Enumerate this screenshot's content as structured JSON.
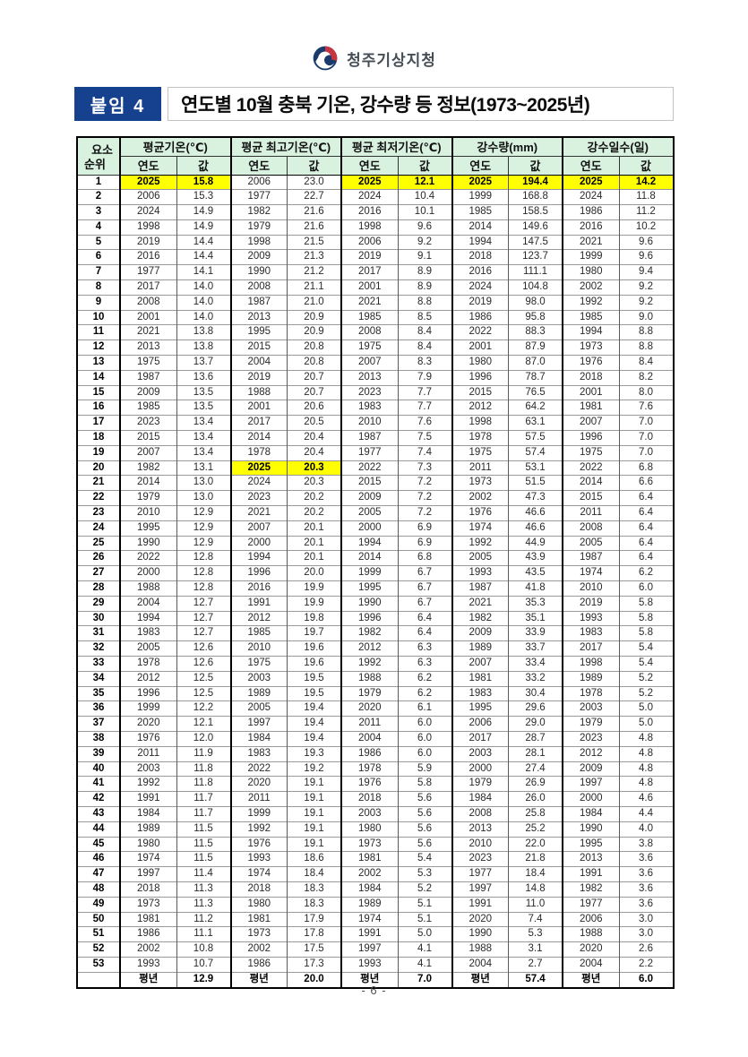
{
  "logo": {
    "agency_name": "청주기상지청"
  },
  "header": {
    "badge": "붙임 4",
    "title": "연도별 10월 충북 기온, 강수량 등 정보(1973~2025년)"
  },
  "table": {
    "corner_top": "요소",
    "corner_bottom": "순위",
    "groups": [
      {
        "label": "평균기온(℃)"
      },
      {
        "label": "평균 최고기온(℃)"
      },
      {
        "label": "평균 최저기온(℃)"
      },
      {
        "label": "강수량(mm)"
      },
      {
        "label": "강수일수(일)"
      }
    ],
    "sub_year": "연도",
    "sub_value": "값",
    "rows": [
      [
        "1",
        [
          "2025",
          "15.8",
          1
        ],
        [
          "2006",
          "23.0"
        ],
        [
          "2025",
          "12.1",
          1
        ],
        [
          "2025",
          "194.4",
          1
        ],
        [
          "2025",
          "14.2",
          1
        ]
      ],
      [
        "2",
        [
          "2006",
          "15.3"
        ],
        [
          "1977",
          "22.7"
        ],
        [
          "2024",
          "10.4"
        ],
        [
          "1999",
          "168.8"
        ],
        [
          "2024",
          "11.8"
        ]
      ],
      [
        "3",
        [
          "2024",
          "14.9"
        ],
        [
          "1982",
          "21.6"
        ],
        [
          "2016",
          "10.1"
        ],
        [
          "1985",
          "158.5"
        ],
        [
          "1986",
          "11.2"
        ]
      ],
      [
        "4",
        [
          "1998",
          "14.9"
        ],
        [
          "1979",
          "21.6"
        ],
        [
          "1998",
          "9.6"
        ],
        [
          "2014",
          "149.6"
        ],
        [
          "2016",
          "10.2"
        ]
      ],
      [
        "5",
        [
          "2019",
          "14.4"
        ],
        [
          "1998",
          "21.5"
        ],
        [
          "2006",
          "9.2"
        ],
        [
          "1994",
          "147.5"
        ],
        [
          "2021",
          "9.6"
        ]
      ],
      [
        "6",
        [
          "2016",
          "14.4"
        ],
        [
          "2009",
          "21.3"
        ],
        [
          "2019",
          "9.1"
        ],
        [
          "2018",
          "123.7"
        ],
        [
          "1999",
          "9.6"
        ]
      ],
      [
        "7",
        [
          "1977",
          "14.1"
        ],
        [
          "1990",
          "21.2"
        ],
        [
          "2017",
          "8.9"
        ],
        [
          "2016",
          "111.1"
        ],
        [
          "1980",
          "9.4"
        ]
      ],
      [
        "8",
        [
          "2017",
          "14.0"
        ],
        [
          "2008",
          "21.1"
        ],
        [
          "2001",
          "8.9"
        ],
        [
          "2024",
          "104.8"
        ],
        [
          "2002",
          "9.2"
        ]
      ],
      [
        "9",
        [
          "2008",
          "14.0"
        ],
        [
          "1987",
          "21.0"
        ],
        [
          "2021",
          "8.8"
        ],
        [
          "2019",
          "98.0"
        ],
        [
          "1992",
          "9.2"
        ]
      ],
      [
        "10",
        [
          "2001",
          "14.0"
        ],
        [
          "2013",
          "20.9"
        ],
        [
          "1985",
          "8.5"
        ],
        [
          "1986",
          "95.8"
        ],
        [
          "1985",
          "9.0"
        ]
      ],
      [
        "11",
        [
          "2021",
          "13.8"
        ],
        [
          "1995",
          "20.9"
        ],
        [
          "2008",
          "8.4"
        ],
        [
          "2022",
          "88.3"
        ],
        [
          "1994",
          "8.8"
        ]
      ],
      [
        "12",
        [
          "2013",
          "13.8"
        ],
        [
          "2015",
          "20.8"
        ],
        [
          "1975",
          "8.4"
        ],
        [
          "2001",
          "87.9"
        ],
        [
          "1973",
          "8.8"
        ]
      ],
      [
        "13",
        [
          "1975",
          "13.7"
        ],
        [
          "2004",
          "20.8"
        ],
        [
          "2007",
          "8.3"
        ],
        [
          "1980",
          "87.0"
        ],
        [
          "1976",
          "8.4"
        ]
      ],
      [
        "14",
        [
          "1987",
          "13.6"
        ],
        [
          "2019",
          "20.7"
        ],
        [
          "2013",
          "7.9"
        ],
        [
          "1996",
          "78.7"
        ],
        [
          "2018",
          "8.2"
        ]
      ],
      [
        "15",
        [
          "2009",
          "13.5"
        ],
        [
          "1988",
          "20.7"
        ],
        [
          "2023",
          "7.7"
        ],
        [
          "2015",
          "76.5"
        ],
        [
          "2001",
          "8.0"
        ]
      ],
      [
        "16",
        [
          "1985",
          "13.5"
        ],
        [
          "2001",
          "20.6"
        ],
        [
          "1983",
          "7.7"
        ],
        [
          "2012",
          "64.2"
        ],
        [
          "1981",
          "7.6"
        ]
      ],
      [
        "17",
        [
          "2023",
          "13.4"
        ],
        [
          "2017",
          "20.5"
        ],
        [
          "2010",
          "7.6"
        ],
        [
          "1998",
          "63.1"
        ],
        [
          "2007",
          "7.0"
        ]
      ],
      [
        "18",
        [
          "2015",
          "13.4"
        ],
        [
          "2014",
          "20.4"
        ],
        [
          "1987",
          "7.5"
        ],
        [
          "1978",
          "57.5"
        ],
        [
          "1996",
          "7.0"
        ]
      ],
      [
        "19",
        [
          "2007",
          "13.4"
        ],
        [
          "1978",
          "20.4"
        ],
        [
          "1977",
          "7.4"
        ],
        [
          "1975",
          "57.4"
        ],
        [
          "1975",
          "7.0"
        ]
      ],
      [
        "20",
        [
          "1982",
          "13.1"
        ],
        [
          "2025",
          "20.3",
          1
        ],
        [
          "2022",
          "7.3"
        ],
        [
          "2011",
          "53.1"
        ],
        [
          "2022",
          "6.8"
        ]
      ],
      [
        "21",
        [
          "2014",
          "13.0"
        ],
        [
          "2024",
          "20.3"
        ],
        [
          "2015",
          "7.2"
        ],
        [
          "1973",
          "51.5"
        ],
        [
          "2014",
          "6.6"
        ]
      ],
      [
        "22",
        [
          "1979",
          "13.0"
        ],
        [
          "2023",
          "20.2"
        ],
        [
          "2009",
          "7.2"
        ],
        [
          "2002",
          "47.3"
        ],
        [
          "2015",
          "6.4"
        ]
      ],
      [
        "23",
        [
          "2010",
          "12.9"
        ],
        [
          "2021",
          "20.2"
        ],
        [
          "2005",
          "7.2"
        ],
        [
          "1976",
          "46.6"
        ],
        [
          "2011",
          "6.4"
        ]
      ],
      [
        "24",
        [
          "1995",
          "12.9"
        ],
        [
          "2007",
          "20.1"
        ],
        [
          "2000",
          "6.9"
        ],
        [
          "1974",
          "46.6"
        ],
        [
          "2008",
          "6.4"
        ]
      ],
      [
        "25",
        [
          "1990",
          "12.9"
        ],
        [
          "2000",
          "20.1"
        ],
        [
          "1994",
          "6.9"
        ],
        [
          "1992",
          "44.9"
        ],
        [
          "2005",
          "6.4"
        ]
      ],
      [
        "26",
        [
          "2022",
          "12.8"
        ],
        [
          "1994",
          "20.1"
        ],
        [
          "2014",
          "6.8"
        ],
        [
          "2005",
          "43.9"
        ],
        [
          "1987",
          "6.4"
        ]
      ],
      [
        "27",
        [
          "2000",
          "12.8"
        ],
        [
          "1996",
          "20.0"
        ],
        [
          "1999",
          "6.7"
        ],
        [
          "1993",
          "43.5"
        ],
        [
          "1974",
          "6.2"
        ]
      ],
      [
        "28",
        [
          "1988",
          "12.8"
        ],
        [
          "2016",
          "19.9"
        ],
        [
          "1995",
          "6.7"
        ],
        [
          "1987",
          "41.8"
        ],
        [
          "2010",
          "6.0"
        ]
      ],
      [
        "29",
        [
          "2004",
          "12.7"
        ],
        [
          "1991",
          "19.9"
        ],
        [
          "1990",
          "6.7"
        ],
        [
          "2021",
          "35.3"
        ],
        [
          "2019",
          "5.8"
        ]
      ],
      [
        "30",
        [
          "1994",
          "12.7"
        ],
        [
          "2012",
          "19.8"
        ],
        [
          "1996",
          "6.4"
        ],
        [
          "1982",
          "35.1"
        ],
        [
          "1993",
          "5.8"
        ]
      ],
      [
        "31",
        [
          "1983",
          "12.7"
        ],
        [
          "1985",
          "19.7"
        ],
        [
          "1982",
          "6.4"
        ],
        [
          "2009",
          "33.9"
        ],
        [
          "1983",
          "5.8"
        ]
      ],
      [
        "32",
        [
          "2005",
          "12.6"
        ],
        [
          "2010",
          "19.6"
        ],
        [
          "2012",
          "6.3"
        ],
        [
          "1989",
          "33.7"
        ],
        [
          "2017",
          "5.4"
        ]
      ],
      [
        "33",
        [
          "1978",
          "12.6"
        ],
        [
          "1975",
          "19.6"
        ],
        [
          "1992",
          "6.3"
        ],
        [
          "2007",
          "33.4"
        ],
        [
          "1998",
          "5.4"
        ]
      ],
      [
        "34",
        [
          "2012",
          "12.5"
        ],
        [
          "2003",
          "19.5"
        ],
        [
          "1988",
          "6.2"
        ],
        [
          "1981",
          "33.2"
        ],
        [
          "1989",
          "5.2"
        ]
      ],
      [
        "35",
        [
          "1996",
          "12.5"
        ],
        [
          "1989",
          "19.5"
        ],
        [
          "1979",
          "6.2"
        ],
        [
          "1983",
          "30.4"
        ],
        [
          "1978",
          "5.2"
        ]
      ],
      [
        "36",
        [
          "1999",
          "12.2"
        ],
        [
          "2005",
          "19.4"
        ],
        [
          "2020",
          "6.1"
        ],
        [
          "1995",
          "29.6"
        ],
        [
          "2003",
          "5.0"
        ]
      ],
      [
        "37",
        [
          "2020",
          "12.1"
        ],
        [
          "1997",
          "19.4"
        ],
        [
          "2011",
          "6.0"
        ],
        [
          "2006",
          "29.0"
        ],
        [
          "1979",
          "5.0"
        ]
      ],
      [
        "38",
        [
          "1976",
          "12.0"
        ],
        [
          "1984",
          "19.4"
        ],
        [
          "2004",
          "6.0"
        ],
        [
          "2017",
          "28.7"
        ],
        [
          "2023",
          "4.8"
        ]
      ],
      [
        "39",
        [
          "2011",
          "11.9"
        ],
        [
          "1983",
          "19.3"
        ],
        [
          "1986",
          "6.0"
        ],
        [
          "2003",
          "28.1"
        ],
        [
          "2012",
          "4.8"
        ]
      ],
      [
        "40",
        [
          "2003",
          "11.8"
        ],
        [
          "2022",
          "19.2"
        ],
        [
          "1978",
          "5.9"
        ],
        [
          "2000",
          "27.4"
        ],
        [
          "2009",
          "4.8"
        ]
      ],
      [
        "41",
        [
          "1992",
          "11.8"
        ],
        [
          "2020",
          "19.1"
        ],
        [
          "1976",
          "5.8"
        ],
        [
          "1979",
          "26.9"
        ],
        [
          "1997",
          "4.8"
        ]
      ],
      [
        "42",
        [
          "1991",
          "11.7"
        ],
        [
          "2011",
          "19.1"
        ],
        [
          "2018",
          "5.6"
        ],
        [
          "1984",
          "26.0"
        ],
        [
          "2000",
          "4.6"
        ]
      ],
      [
        "43",
        [
          "1984",
          "11.7"
        ],
        [
          "1999",
          "19.1"
        ],
        [
          "2003",
          "5.6"
        ],
        [
          "2008",
          "25.8"
        ],
        [
          "1984",
          "4.4"
        ]
      ],
      [
        "44",
        [
          "1989",
          "11.5"
        ],
        [
          "1992",
          "19.1"
        ],
        [
          "1980",
          "5.6"
        ],
        [
          "2013",
          "25.2"
        ],
        [
          "1990",
          "4.0"
        ]
      ],
      [
        "45",
        [
          "1980",
          "11.5"
        ],
        [
          "1976",
          "19.1"
        ],
        [
          "1973",
          "5.6"
        ],
        [
          "2010",
          "22.0"
        ],
        [
          "1995",
          "3.8"
        ]
      ],
      [
        "46",
        [
          "1974",
          "11.5"
        ],
        [
          "1993",
          "18.6"
        ],
        [
          "1981",
          "5.4"
        ],
        [
          "2023",
          "21.8"
        ],
        [
          "2013",
          "3.6"
        ]
      ],
      [
        "47",
        [
          "1997",
          "11.4"
        ],
        [
          "1974",
          "18.4"
        ],
        [
          "2002",
          "5.3"
        ],
        [
          "1977",
          "18.4"
        ],
        [
          "1991",
          "3.6"
        ]
      ],
      [
        "48",
        [
          "2018",
          "11.3"
        ],
        [
          "2018",
          "18.3"
        ],
        [
          "1984",
          "5.2"
        ],
        [
          "1997",
          "14.8"
        ],
        [
          "1982",
          "3.6"
        ]
      ],
      [
        "49",
        [
          "1973",
          "11.3"
        ],
        [
          "1980",
          "18.3"
        ],
        [
          "1989",
          "5.1"
        ],
        [
          "1991",
          "11.0"
        ],
        [
          "1977",
          "3.6"
        ]
      ],
      [
        "50",
        [
          "1981",
          "11.2"
        ],
        [
          "1981",
          "17.9"
        ],
        [
          "1974",
          "5.1"
        ],
        [
          "2020",
          "7.4"
        ],
        [
          "2006",
          "3.0"
        ]
      ],
      [
        "51",
        [
          "1986",
          "11.1"
        ],
        [
          "1973",
          "17.8"
        ],
        [
          "1991",
          "5.0"
        ],
        [
          "1990",
          "5.3"
        ],
        [
          "1988",
          "3.0"
        ]
      ],
      [
        "52",
        [
          "2002",
          "10.8"
        ],
        [
          "2002",
          "17.5"
        ],
        [
          "1997",
          "4.1"
        ],
        [
          "1988",
          "3.1"
        ],
        [
          "2020",
          "2.6"
        ]
      ],
      [
        "53",
        [
          "1993",
          "10.7"
        ],
        [
          "1986",
          "17.3"
        ],
        [
          "1993",
          "4.1"
        ],
        [
          "2004",
          "2.7"
        ],
        [
          "2004",
          "2.2"
        ]
      ]
    ],
    "normals_row": {
      "label": "평년",
      "values": [
        "12.9",
        "20.0",
        "7.0",
        "57.4",
        "6.0"
      ]
    }
  },
  "footer": {
    "page_number": "- 6 -"
  },
  "colors": {
    "header_green": "#d9f2e0",
    "highlight_yellow": "#ffff00",
    "badge_blue": "#15418e",
    "emblem_navy": "#1a3a6c",
    "emblem_red": "#c53642"
  }
}
